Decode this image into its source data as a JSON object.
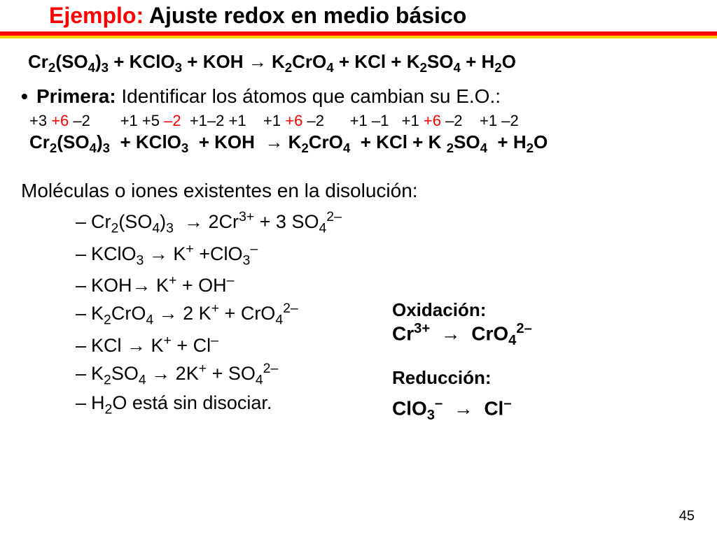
{
  "title": {
    "accent": "Ejemplo:",
    "rest": " Ajuste redox en medio básico"
  },
  "colors": {
    "accent_red": "#ff0000",
    "rule_red": "#ff0000",
    "rule_yellow": "#ffcc00",
    "text_black": "#000000",
    "bg": "#ffffff"
  },
  "main_equation_html": "Cr<sub>2</sub>(SO<sub>4</sub>)<sub>3</sub> + KClO<sub>3</sub> + KOH <span class='arrow'>&#8594;</span> K<sub>2</sub>CrO<sub>4</sub> + KCl + K<sub>2</sub>SO<sub>4</sub> + H<sub>2</sub>O",
  "step1": {
    "lead": "Primera:",
    "rest": " Identificar los átomos que cambian su E.O.:"
  },
  "oxidation_row": [
    {
      "t": "+3 ",
      "c": "blk"
    },
    {
      "t": "+6 ",
      "c": "red"
    },
    {
      "t": "–2",
      "c": "blk"
    },
    {
      "t": "       ",
      "c": "blk"
    },
    {
      "t": "+1 ",
      "c": "blk"
    },
    {
      "t": "+5 ",
      "c": "blk"
    },
    {
      "t": "–2",
      "c": "red"
    },
    {
      "t": "  ",
      "c": "blk"
    },
    {
      "t": "+1",
      "c": "blk"
    },
    {
      "t": "–2 ",
      "c": "blk"
    },
    {
      "t": "+1",
      "c": "blk"
    },
    {
      "t": "    ",
      "c": "blk"
    },
    {
      "t": "+1 ",
      "c": "blk"
    },
    {
      "t": "+6 ",
      "c": "red"
    },
    {
      "t": "–2",
      "c": "blk"
    },
    {
      "t": "      ",
      "c": "blk"
    },
    {
      "t": "+1 ",
      "c": "blk"
    },
    {
      "t": "–1",
      "c": "blk"
    },
    {
      "t": "   ",
      "c": "blk"
    },
    {
      "t": "+1 ",
      "c": "blk"
    },
    {
      "t": "+6 ",
      "c": "red"
    },
    {
      "t": "–2",
      "c": "blk"
    },
    {
      "t": "    ",
      "c": "blk"
    },
    {
      "t": "+1 ",
      "c": "blk"
    },
    {
      "t": "–2",
      "c": "blk"
    }
  ],
  "equation2_html": "Cr<sub>2</sub>(SO<sub>4</sub>)<sub>3</sub>&nbsp;&nbsp;+ KClO<sub>3</sub>&nbsp;&nbsp;+ KOH&nbsp;&nbsp;<span class='arrow'>&#8594;</span> K<sub>2</sub>CrO<sub>4</sub>&nbsp;&nbsp;+ KCl&nbsp;+ K <sub>2</sub>SO<sub>4</sub>&nbsp;&nbsp;+ H<sub>2</sub>O",
  "subhead": "Moléculas o iones existentes en la disolución:",
  "ions": [
    "Cr<sub>2</sub>(SO<sub>4</sub>)<sub>3</sub> &nbsp;<span class='arrow'>&#8594;</span> 2Cr<sup>3+</sup> + 3 SO<sub>4</sub><sup>2–</sup>",
    "KClO<sub>3</sub> <span class='arrow'>&#8594;</span> K<sup>+</sup> +ClO<sub>3</sub><sup>–</sup>",
    "KOH<span class='arrow'>&#8594;</span> K<sup>+</sup> + OH<sup>–</sup>",
    "K<sub>2</sub>CrO<sub>4</sub> <span class='arrow'>&#8594;</span> 2 K<sup>+</sup> + CrO<sub>4</sub><sup>2–</sup>",
    "KCl <span class='arrow'>&#8594;</span> K<sup>+</sup> + Cl<sup>–</sup>",
    "K<sub>2</sub>SO<sub>4</sub> <span class='arrow'>&#8594;</span> 2K<sup>+</sup> + SO<sub>4</sub><sup>2–</sup>",
    "H<sub>2</sub>O está sin disociar."
  ],
  "side": {
    "ox_title": "Oxidación:",
    "ox_eq_html": "Cr<sup>3+</sup> &nbsp;<span class='arrow'>&#8594;</span>&nbsp; CrO<sub>4</sub><sup>2–</sup>",
    "red_title": "Reducción:",
    "red_eq_html": "ClO<sub>3</sub><sup>–</sup> &nbsp;<span class='arrow'>&#8594;</span>&nbsp; Cl<sup>–</sup>"
  },
  "page_number": "45"
}
